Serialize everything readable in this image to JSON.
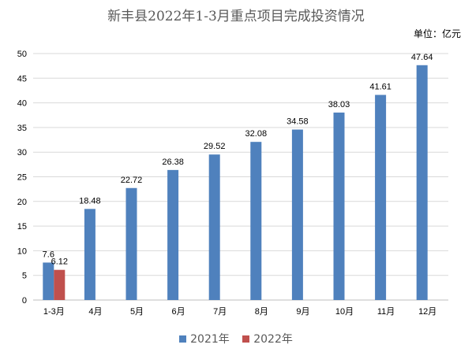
{
  "chart_data": {
    "type": "bar",
    "title": "新丰县2022年1-3月重点项目完成投资情况",
    "unit_label": "单位：亿元",
    "categories": [
      "1-3月",
      "4月",
      "5月",
      "6月",
      "7月",
      "8月",
      "9月",
      "10月",
      "11月",
      "12月"
    ],
    "series": [
      {
        "name": "2021年",
        "color": "#4F81BD",
        "values": [
          7.6,
          18.48,
          22.72,
          26.38,
          29.52,
          32.08,
          34.58,
          38.03,
          41.61,
          47.64
        ],
        "labels": [
          "7.6",
          "18.48",
          "22.72",
          "26.38",
          "29.52",
          "32.08",
          "34.58",
          "38.03",
          "41.61",
          "47.64"
        ]
      },
      {
        "name": "2022年",
        "color": "#C0504D",
        "values": [
          6.12,
          null,
          null,
          null,
          null,
          null,
          null,
          null,
          null,
          null
        ],
        "labels": [
          "6.12",
          "",
          "",
          "",
          "",
          "",
          "",
          "",
          "",
          ""
        ]
      }
    ],
    "yticks": [
      "0",
      "5",
      "10",
      "15",
      "20",
      "25",
      "30",
      "35",
      "40",
      "45",
      "50"
    ],
    "ylim": [
      0,
      50
    ],
    "grid": true,
    "legend_position": "bottom"
  }
}
